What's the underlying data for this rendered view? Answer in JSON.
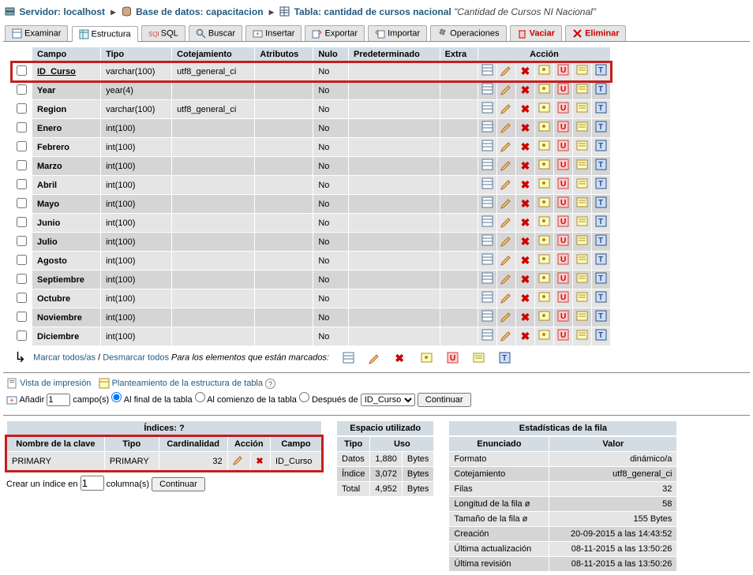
{
  "breadcrumb": {
    "server_label": "Servidor:",
    "server_value": "localhost",
    "db_label": "Base de datos:",
    "db_value": "capacitacion",
    "table_label": "Tabla:",
    "table_value": "cantidad de cursos nacional",
    "comment": "\"Cantidad de Cursos NI Nacional\""
  },
  "tabs": {
    "examinar": "Examinar",
    "estructura": "Estructura",
    "sql": "SQL",
    "buscar": "Buscar",
    "insertar": "Insertar",
    "exportar": "Exportar",
    "importar": "Importar",
    "operaciones": "Operaciones",
    "vaciar": "Vaciar",
    "eliminar": "Eliminar"
  },
  "headers": {
    "campo": "Campo",
    "tipo": "Tipo",
    "cotejamiento": "Cotejamiento",
    "atributos": "Atributos",
    "nulo": "Nulo",
    "predeterminado": "Predeterminado",
    "extra": "Extra",
    "accion": "Acción"
  },
  "rows": [
    {
      "name": "ID_Curso",
      "type": "varchar(100)",
      "collation": "utf8_general_ci",
      "null": "No",
      "primary": true,
      "highlight": true
    },
    {
      "name": "Year",
      "type": "year(4)",
      "collation": "",
      "null": "No"
    },
    {
      "name": "Region",
      "type": "varchar(100)",
      "collation": "utf8_general_ci",
      "null": "No"
    },
    {
      "name": "Enero",
      "type": "int(100)",
      "collation": "",
      "null": "No"
    },
    {
      "name": "Febrero",
      "type": "int(100)",
      "collation": "",
      "null": "No"
    },
    {
      "name": "Marzo",
      "type": "int(100)",
      "collation": "",
      "null": "No"
    },
    {
      "name": "Abril",
      "type": "int(100)",
      "collation": "",
      "null": "No"
    },
    {
      "name": "Mayo",
      "type": "int(100)",
      "collation": "",
      "null": "No"
    },
    {
      "name": "Junio",
      "type": "int(100)",
      "collation": "",
      "null": "No"
    },
    {
      "name": "Julio",
      "type": "int(100)",
      "collation": "",
      "null": "No"
    },
    {
      "name": "Agosto",
      "type": "int(100)",
      "collation": "",
      "null": "No"
    },
    {
      "name": "Septiembre",
      "type": "int(100)",
      "collation": "",
      "null": "No"
    },
    {
      "name": "Octubre",
      "type": "int(100)",
      "collation": "",
      "null": "No"
    },
    {
      "name": "Noviembre",
      "type": "int(100)",
      "collation": "",
      "null": "No"
    },
    {
      "name": "Diciembre",
      "type": "int(100)",
      "collation": "",
      "null": "No"
    }
  ],
  "mark": {
    "marcar": "Marcar todos/as",
    "sep": "/",
    "desmarcar": "Desmarcar todos",
    "hint": "Para los elementos que están marcados:"
  },
  "linkbar": {
    "print": "Vista de impresión",
    "propose": "Planteamiento de la estructura de tabla"
  },
  "add": {
    "prefix": "Añadir",
    "count": "1",
    "fields": "campo(s)",
    "at_end": "Al final de la tabla",
    "at_start": "Al comienzo de la tabla",
    "after": "Después de",
    "after_col": "ID_Curso",
    "go": "Continuar"
  },
  "indexes": {
    "title": "Índices:",
    "h_keyname": "Nombre de la clave",
    "h_type": "Tipo",
    "h_card": "Cardinalidad",
    "h_action": "Acción",
    "h_field": "Campo",
    "row": {
      "keyname": "PRIMARY",
      "type": "PRIMARY",
      "card": "32",
      "field": "ID_Curso"
    },
    "create_prefix": "Crear un índice en",
    "create_count": "1",
    "create_suffix": "columna(s)",
    "create_go": "Continuar"
  },
  "space": {
    "title": "Espacio utilizado",
    "h_type": "Tipo",
    "h_usage": "Uso",
    "rows": [
      {
        "label": "Datos",
        "val": "1,880",
        "unit": "Bytes"
      },
      {
        "label": "Índice",
        "val": "3,072",
        "unit": "Bytes"
      },
      {
        "label": "Total",
        "val": "4,952",
        "unit": "Bytes"
      }
    ]
  },
  "stats": {
    "title": "Estadísticas de la fila",
    "h_stmt": "Enunciado",
    "h_val": "Valor",
    "rows": [
      {
        "label": "Formato",
        "val": "dinámico/a"
      },
      {
        "label": "Cotejamiento",
        "val": "utf8_general_ci"
      },
      {
        "label": "Filas",
        "val": "32"
      },
      {
        "label": "Longitud de la fila ø",
        "val": "58"
      },
      {
        "label": "Tamaño de la fila ø",
        "val": "155 Bytes"
      },
      {
        "label": "Creación",
        "val": "20-09-2015 a las 14:43:52"
      },
      {
        "label": "Última actualización",
        "val": "08-11-2015 a las 13:50:26"
      },
      {
        "label": "Última revisión",
        "val": "08-11-2015 a las 13:50:26"
      }
    ]
  }
}
